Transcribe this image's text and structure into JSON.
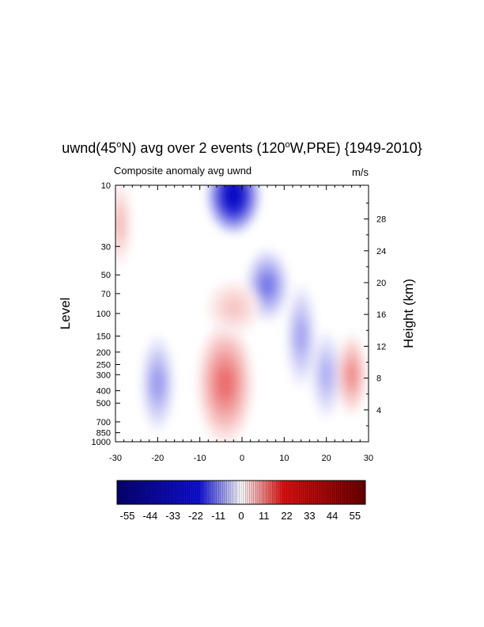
{
  "chart_data": {
    "type": "heatmap",
    "title": {
      "prefix": "uwnd(45",
      "sup1": "o",
      "mid1": "N) avg over 2 events (120",
      "sup2": "o",
      "mid2": "W,PRE) {1949-2010}"
    },
    "subtitle_left": "Composite anomaly avg uwnd",
    "subtitle_right": "m/s",
    "xlabel": "",
    "ylabel": "Level",
    "ylabel_right": "Height (km)",
    "x_ticks": [
      -30,
      -20,
      -10,
      0,
      10,
      20,
      30
    ],
    "xlim": [
      -30,
      30
    ],
    "y_ticks": [
      10,
      30,
      50,
      70,
      100,
      150,
      200,
      250,
      300,
      400,
      500,
      700,
      850,
      1000
    ],
    "ylim": [
      1000,
      10
    ],
    "y_scale": "log",
    "y_right_ticks": [
      4,
      8,
      12,
      16,
      20,
      24,
      28
    ],
    "colorbar": {
      "labels": [
        "-55",
        "-44",
        "-33",
        "-22",
        "-11",
        "0",
        "11",
        "22",
        "33",
        "44",
        "55"
      ],
      "range": [
        -60,
        60
      ],
      "colors": [
        "#060270",
        "#1010d8",
        "#ffffff",
        "#e01010",
        "#6a0000"
      ]
    },
    "anomaly_features": [
      {
        "kind": "negative",
        "center_x": -2,
        "center_level": 12,
        "peak_value": -30
      },
      {
        "kind": "negative",
        "center_x": 6,
        "center_level": 60,
        "peak_value": -12
      },
      {
        "kind": "negative",
        "center_x": 14,
        "center_level": 150,
        "peak_value": -8
      },
      {
        "kind": "negative",
        "center_x": -20,
        "center_level": 350,
        "peak_value": -9
      },
      {
        "kind": "negative",
        "center_x": 20,
        "center_level": 300,
        "peak_value": -7
      },
      {
        "kind": "positive",
        "center_x": -4,
        "center_level": 350,
        "peak_value": 13
      },
      {
        "kind": "positive",
        "center_x": 26,
        "center_level": 300,
        "peak_value": 10
      },
      {
        "kind": "positive",
        "center_x": -29,
        "center_level": 20,
        "peak_value": 6
      },
      {
        "kind": "positive",
        "center_x": -2,
        "center_level": 90,
        "peak_value": 5
      }
    ]
  }
}
